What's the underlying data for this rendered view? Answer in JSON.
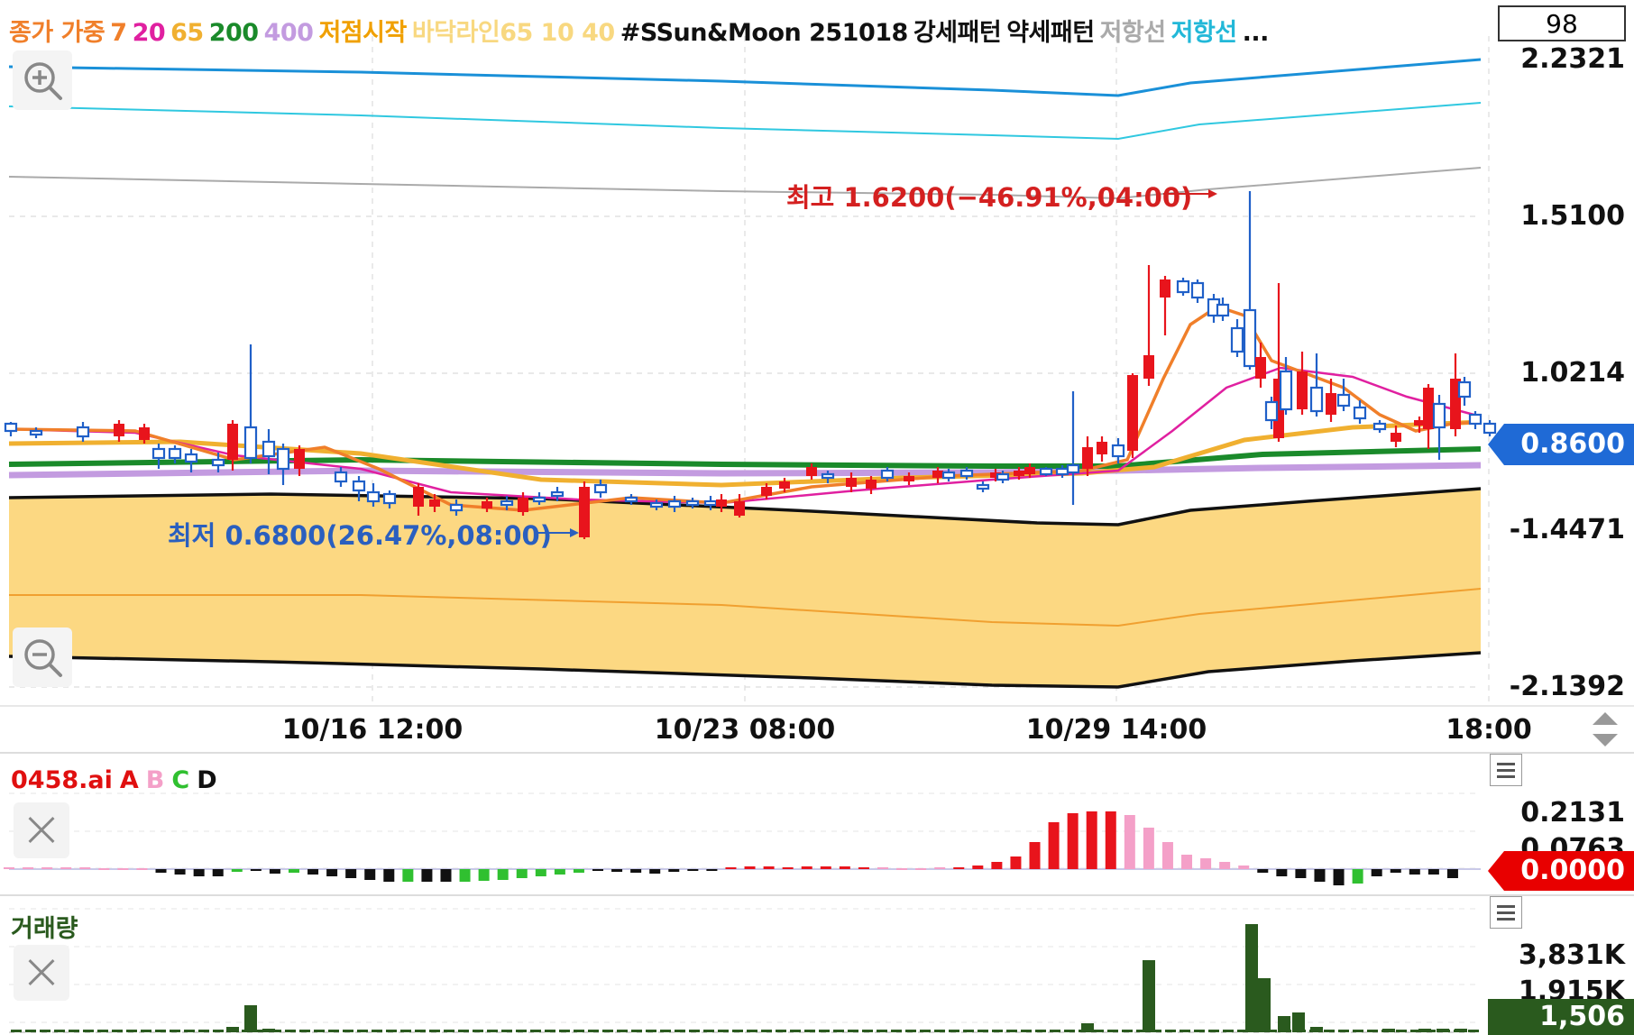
{
  "legend": [
    {
      "text": "종가 가중",
      "color": "#f07f2a"
    },
    {
      "text": "7",
      "color": "#f07f2a"
    },
    {
      "text": "20",
      "color": "#e020a0"
    },
    {
      "text": "65",
      "color": "#f0b030"
    },
    {
      "text": "200",
      "color": "#1a8a2a"
    },
    {
      "text": "400",
      "color": "#c39be0"
    },
    {
      "text": "저점시작",
      "color": "#f0a000"
    },
    {
      "text": "바닥라인65 10 40",
      "color": "#f8d880"
    },
    {
      "text": "#SSun&Moon 251018",
      "color": "#111111"
    },
    {
      "text": "강세패턴",
      "color": "#111111"
    },
    {
      "text": "약세패턴",
      "color": "#111111"
    },
    {
      "text": "저항선",
      "color": "#aaaaaa"
    },
    {
      "text": "저항선",
      "color": "#22b8d8"
    },
    {
      "text": "...",
      "color": "#111111"
    }
  ],
  "count_box": "98",
  "main_axis": {
    "ticks": [
      "2.2321",
      "1.5100",
      "1.0214",
      "-1.4471",
      "-2.1392"
    ],
    "current_price": "0.8600"
  },
  "x_axis": {
    "ticks": [
      "10/16 12:00",
      "10/23 08:00",
      "10/29 14:00",
      "18:00"
    ]
  },
  "annotations": {
    "high": "최고 1.6200(−46.91%,04:00)",
    "low": "최저 0.6800(26.47%,08:00)"
  },
  "indicator_panel": {
    "title_parts": [
      {
        "text": "0458.ai",
        "color": "#e01010"
      },
      {
        "text": "A",
        "color": "#e01010"
      },
      {
        "text": "B",
        "color": "#f4a0c8"
      },
      {
        "text": "C",
        "color": "#30c030"
      },
      {
        "text": "D",
        "color": "#111111"
      }
    ],
    "ticks": [
      "0.2131",
      "0.0763"
    ],
    "current_value": "0.0000"
  },
  "volume_panel": {
    "title": "거래량",
    "ticks": [
      "3,831K",
      "1,915K"
    ],
    "current_value": "1,506"
  },
  "colors": {
    "up": "#e8141c",
    "down": "#2060c8",
    "current_tag": "#1f6ad6",
    "indicator_tag": "#e80000",
    "volume_tag": "#2a5a1e",
    "fill": "#fcd882"
  },
  "icons": [
    "zoom-in-icon",
    "zoom-out-icon",
    "close-icon",
    "menu-icon",
    "scroll-updown-icon"
  ]
}
